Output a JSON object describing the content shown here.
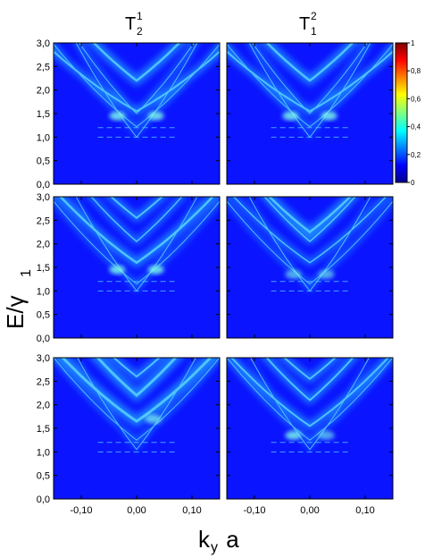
{
  "chart_data": {
    "type": "heatmap",
    "columns": [
      {
        "base": "T",
        "subscript": "2",
        "superscript": "1"
      },
      {
        "base": "T",
        "subscript": "1",
        "superscript": "2"
      }
    ],
    "ylabel": {
      "main": "E/γ",
      "sub": "1"
    },
    "xlabel": {
      "main": "k",
      "sub": "y",
      "suffix": " a"
    },
    "ylim": [
      0.0,
      3.0
    ],
    "xlim": [
      -0.15,
      0.15
    ],
    "y_ticks": [
      "0,0",
      "0,5",
      "1,0",
      "1,5",
      "2,0",
      "2,5",
      "3,0"
    ],
    "y_tick_values": [
      0.0,
      0.5,
      1.0,
      1.5,
      2.0,
      2.5,
      3.0
    ],
    "x_ticks": [
      "-0,10",
      "0,00",
      "0,10"
    ],
    "x_tick_values": [
      -0.1,
      0.0,
      0.1
    ],
    "colorbar": {
      "range": [
        0,
        1
      ],
      "ticks": [
        "1",
        "0,8",
        "0,6",
        "0,4",
        "0,2",
        "0"
      ],
      "tick_values": [
        1.0,
        0.8,
        0.6,
        0.4,
        0.2,
        0.0
      ]
    },
    "panels": [
      {
        "row": 1,
        "col": 1,
        "bands": [
          {
            "b0": 1.0,
            "c": 1.5,
            "w": 1
          },
          {
            "b0": 1.22,
            "c": 0.9,
            "w": 2
          },
          {
            "b0": 1.55,
            "c": 0.65,
            "w": 4
          },
          {
            "b0": 1.5,
            "c": 1.2,
            "w": 2
          },
          {
            "b0": 2.2,
            "c": 0.9,
            "w": 5
          }
        ],
        "blobs": [
          {
            "kx": -0.035,
            "e": 1.45,
            "i": 0.5
          },
          {
            "kx": 0.035,
            "e": 1.45,
            "i": 0.5
          }
        ]
      },
      {
        "row": 1,
        "col": 2,
        "bands": [
          {
            "b0": 1.0,
            "c": 1.5,
            "w": 1
          },
          {
            "b0": 1.22,
            "c": 0.9,
            "w": 2
          },
          {
            "b0": 1.55,
            "c": 0.65,
            "w": 4
          },
          {
            "b0": 1.5,
            "c": 1.2,
            "w": 2
          },
          {
            "b0": 2.2,
            "c": 0.9,
            "w": 5
          }
        ],
        "blobs": [
          {
            "kx": -0.035,
            "e": 1.45,
            "i": 0.5
          },
          {
            "kx": 0.035,
            "e": 1.45,
            "i": 0.5
          }
        ]
      },
      {
        "row": 2,
        "col": 1,
        "bands": [
          {
            "b0": 1.0,
            "c": 1.5,
            "w": 1
          },
          {
            "b0": 1.15,
            "c": 0.9,
            "w": 2
          },
          {
            "b0": 1.6,
            "c": 0.8,
            "w": 5
          },
          {
            "b0": 2.05,
            "c": 1.0,
            "w": 3
          },
          {
            "b0": 2.55,
            "c": 0.9,
            "w": 4
          }
        ],
        "blobs": [
          {
            "kx": -0.035,
            "e": 1.45,
            "i": 0.5
          },
          {
            "kx": 0.035,
            "e": 1.45,
            "i": 0.5
          }
        ]
      },
      {
        "row": 2,
        "col": 2,
        "bands": [
          {
            "b0": 1.0,
            "c": 1.5,
            "w": 1
          },
          {
            "b0": 1.15,
            "c": 0.9,
            "w": 2
          },
          {
            "b0": 1.6,
            "c": 0.8,
            "w": 3
          },
          {
            "b0": 2.05,
            "c": 1.0,
            "w": 3
          },
          {
            "b0": 2.25,
            "c": 0.9,
            "w": 5
          }
        ],
        "blobs": [
          {
            "kx": -0.03,
            "e": 1.35,
            "i": 0.3
          },
          {
            "kx": 0.03,
            "e": 1.35,
            "i": 0.3
          }
        ]
      },
      {
        "row": 3,
        "col": 1,
        "bands": [
          {
            "b0": 1.05,
            "c": 1.5,
            "w": 1
          },
          {
            "b0": 1.25,
            "c": 0.9,
            "w": 2
          },
          {
            "b0": 1.65,
            "c": 0.8,
            "w": 6
          },
          {
            "b0": 2.2,
            "c": 1.0,
            "w": 6
          },
          {
            "b0": 2.6,
            "c": 0.9,
            "w": 4
          }
        ],
        "blobs": [
          {
            "kx": 0.03,
            "e": 1.7,
            "i": 0.4
          }
        ]
      },
      {
        "row": 3,
        "col": 2,
        "bands": [
          {
            "b0": 1.05,
            "c": 1.5,
            "w": 1
          },
          {
            "b0": 1.25,
            "c": 0.9,
            "w": 2
          },
          {
            "b0": 1.55,
            "c": 0.8,
            "w": 4
          },
          {
            "b0": 2.1,
            "c": 1.0,
            "w": 4
          },
          {
            "b0": 2.55,
            "c": 0.9,
            "w": 4
          }
        ],
        "blobs": [
          {
            "kx": -0.03,
            "e": 1.35,
            "i": 0.5
          },
          {
            "kx": 0.03,
            "e": 1.35,
            "i": 0.3
          }
        ]
      }
    ]
  }
}
